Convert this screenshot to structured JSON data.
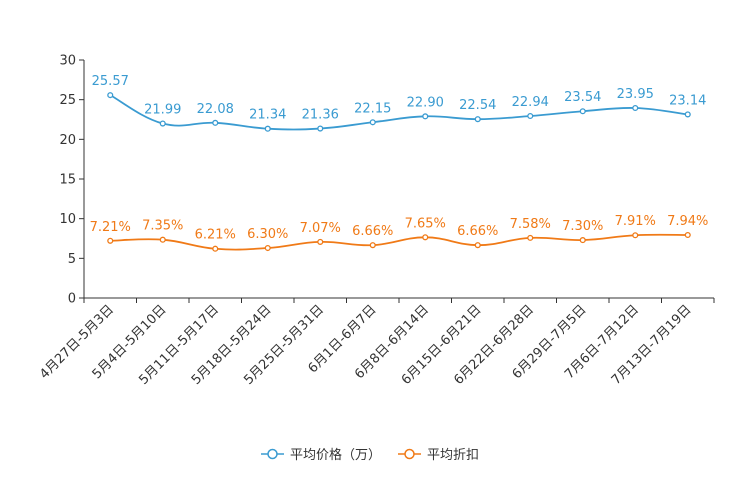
{
  "chart_data": {
    "type": "line",
    "title": "",
    "xlabel": "",
    "ylabel": "",
    "ylim": [
      0,
      30
    ],
    "yticks": [
      0,
      5,
      10,
      15,
      20,
      25,
      30
    ],
    "categories": [
      "4月27日-5月3日",
      "5月4日-5月10日",
      "5月11日-5月17日",
      "5月18日-5月24日",
      "5月25日-5月31日",
      "6月1日-6月7日",
      "6月8日-6月14日",
      "6月15日-6月21日",
      "6月22日-6月28日",
      "6月29日-7月5日",
      "7月6日-7月12日",
      "7月13日-7月19日"
    ],
    "series": [
      {
        "name": "平均价格（万）",
        "color": "#3a9bd1",
        "values": [
          25.57,
          21.99,
          22.08,
          21.34,
          21.36,
          22.15,
          22.9,
          22.54,
          22.94,
          23.54,
          23.95,
          23.14
        ],
        "labels": [
          "25.57",
          "21.99",
          "22.08",
          "21.34",
          "21.36",
          "22.15",
          "22.90",
          "22.54",
          "22.94",
          "23.54",
          "23.95",
          "23.14"
        ]
      },
      {
        "name": "平均折扣",
        "color": "#f07a17",
        "values": [
          7.21,
          7.35,
          6.21,
          6.3,
          7.07,
          6.66,
          7.65,
          6.66,
          7.58,
          7.3,
          7.91,
          7.94
        ],
        "labels": [
          "7.21%",
          "7.35%",
          "6.21%",
          "6.30%",
          "7.07%",
          "6.66%",
          "7.65%",
          "6.66%",
          "7.58%",
          "7.30%",
          "7.91%",
          "7.94%"
        ]
      }
    ],
    "legend_position": "bottom-center",
    "grid": false
  }
}
